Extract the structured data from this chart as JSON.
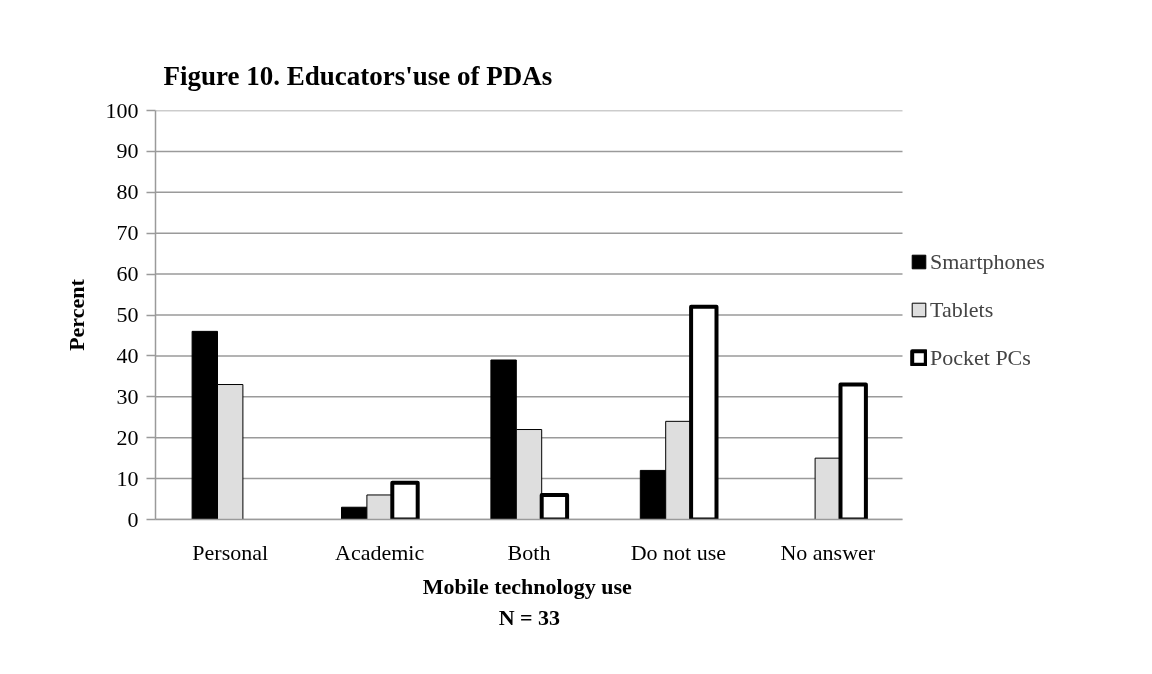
{
  "chart_data": {
    "type": "bar",
    "title": "Figure 10. Educators'use of PDAs",
    "xlabel": "Mobile technology use",
    "ylabel": "Percent",
    "annotations": [
      "N = 33"
    ],
    "categories": [
      "Personal",
      "Academic",
      "Both",
      "Do not use",
      "No answer"
    ],
    "series": [
      {
        "name": "Smartphones",
        "color": "#000000",
        "values": [
          46,
          3,
          39,
          12,
          null
        ]
      },
      {
        "name": "Tablets",
        "color": "#dedede",
        "values": [
          33,
          6,
          22,
          24,
          15
        ]
      },
      {
        "name": "Pocket PCs",
        "color": "#ffffff",
        "values": [
          null,
          9,
          6,
          52,
          33
        ]
      }
    ],
    "ylim": [
      0,
      100
    ],
    "yticks": [
      0,
      10,
      20,
      30,
      40,
      50,
      60,
      70,
      80,
      90,
      100
    ],
    "grid": "y",
    "legend": "right"
  }
}
